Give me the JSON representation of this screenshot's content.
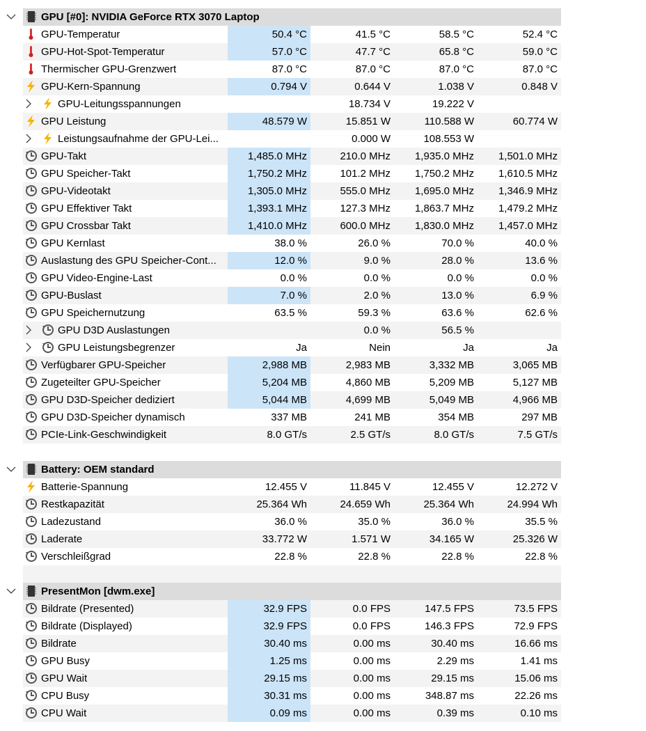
{
  "sections": [
    {
      "title": "GPU [#0]: NVIDIA GeForce RTX 3070 Laptop",
      "rows": [
        {
          "label": "GPU-Temperatur",
          "icon": "temp",
          "highlight": true,
          "values": [
            "50.4 °C",
            "41.5 °C",
            "58.5 °C",
            "52.4 °C"
          ]
        },
        {
          "label": "GPU-Hot-Spot-Temperatur",
          "icon": "temp",
          "highlight": true,
          "values": [
            "57.0 °C",
            "47.7 °C",
            "65.8 °C",
            "59.0 °C"
          ]
        },
        {
          "label": "Thermischer GPU-Grenzwert",
          "icon": "temp",
          "highlight": false,
          "values": [
            "87.0 °C",
            "87.0 °C",
            "87.0 °C",
            "87.0 °C"
          ]
        },
        {
          "label": "GPU-Kern-Spannung",
          "icon": "volt",
          "highlight": true,
          "values": [
            "0.794 V",
            "0.644 V",
            "1.038 V",
            "0.848 V"
          ]
        },
        {
          "label": "GPU-Leitungsspannungen",
          "icon": "volt",
          "child": true,
          "highlight": false,
          "values": [
            null,
            "18.734 V",
            "19.222 V",
            null
          ]
        },
        {
          "label": "GPU Leistung",
          "icon": "volt",
          "highlight": true,
          "values": [
            "48.579 W",
            "15.851 W",
            "110.588 W",
            "60.774 W"
          ]
        },
        {
          "label": "Leistungsaufnahme der GPU-Lei...",
          "icon": "volt",
          "child": true,
          "highlight": false,
          "values": [
            null,
            "0.000 W",
            "108.553 W",
            null
          ]
        },
        {
          "label": "GPU-Takt",
          "icon": "clock",
          "highlight": true,
          "values": [
            "1,485.0 MHz",
            "210.0 MHz",
            "1,935.0 MHz",
            "1,501.0 MHz"
          ]
        },
        {
          "label": "GPU Speicher-Takt",
          "icon": "clock",
          "highlight": true,
          "values": [
            "1,750.2 MHz",
            "101.2 MHz",
            "1,750.2 MHz",
            "1,610.5 MHz"
          ]
        },
        {
          "label": "GPU-Videotakt",
          "icon": "clock",
          "highlight": true,
          "values": [
            "1,305.0 MHz",
            "555.0 MHz",
            "1,695.0 MHz",
            "1,346.9 MHz"
          ]
        },
        {
          "label": "GPU Effektiver Takt",
          "icon": "clock",
          "highlight": true,
          "values": [
            "1,393.1 MHz",
            "127.3 MHz",
            "1,863.7 MHz",
            "1,479.2 MHz"
          ]
        },
        {
          "label": "GPU Crossbar Takt",
          "icon": "clock",
          "highlight": true,
          "values": [
            "1,410.0 MHz",
            "600.0 MHz",
            "1,830.0 MHz",
            "1,457.0 MHz"
          ]
        },
        {
          "label": "GPU Kernlast",
          "icon": "clock",
          "highlight": false,
          "values": [
            "38.0 %",
            "26.0 %",
            "70.0 %",
            "40.0 %"
          ]
        },
        {
          "label": "Auslastung des GPU Speicher-Cont...",
          "icon": "clock",
          "highlight": true,
          "values": [
            "12.0 %",
            "9.0 %",
            "28.0 %",
            "13.6 %"
          ]
        },
        {
          "label": "GPU Video-Engine-Last",
          "icon": "clock",
          "highlight": false,
          "values": [
            "0.0 %",
            "0.0 %",
            "0.0 %",
            "0.0 %"
          ]
        },
        {
          "label": "GPU-Buslast",
          "icon": "clock",
          "highlight": true,
          "values": [
            "7.0 %",
            "2.0 %",
            "13.0 %",
            "6.9 %"
          ]
        },
        {
          "label": "GPU Speichernutzung",
          "icon": "clock",
          "highlight": false,
          "values": [
            "63.5 %",
            "59.3 %",
            "63.6 %",
            "62.6 %"
          ]
        },
        {
          "label": "GPU D3D Auslastungen",
          "icon": "clock",
          "child": true,
          "highlight": false,
          "values": [
            null,
            "0.0 %",
            "56.5 %",
            null
          ]
        },
        {
          "label": "GPU Leistungsbegrenzer",
          "icon": "clock",
          "child": true,
          "highlight": false,
          "values": [
            "Ja",
            "Nein",
            "Ja",
            "Ja"
          ]
        },
        {
          "label": "Verfügbarer GPU-Speicher",
          "icon": "clock",
          "highlight": true,
          "values": [
            "2,988 MB",
            "2,983 MB",
            "3,332 MB",
            "3,065 MB"
          ]
        },
        {
          "label": "Zugeteilter GPU-Speicher",
          "icon": "clock",
          "highlight": true,
          "values": [
            "5,204 MB",
            "4,860 MB",
            "5,209 MB",
            "5,127 MB"
          ]
        },
        {
          "label": "GPU D3D-Speicher dediziert",
          "icon": "clock",
          "highlight": true,
          "values": [
            "5,044 MB",
            "4,699 MB",
            "5,049 MB",
            "4,966 MB"
          ]
        },
        {
          "label": "GPU D3D-Speicher dynamisch",
          "icon": "clock",
          "highlight": false,
          "values": [
            "337 MB",
            "241 MB",
            "354 MB",
            "297 MB"
          ]
        },
        {
          "label": "PCIe-Link-Geschwindigkeit",
          "icon": "clock",
          "highlight": false,
          "values": [
            "8.0 GT/s",
            "2.5 GT/s",
            "8.0 GT/s",
            "7.5 GT/s"
          ]
        }
      ]
    },
    {
      "title": "Battery: OEM standard",
      "rows": [
        {
          "label": "Batterie-Spannung",
          "icon": "volt",
          "highlight": false,
          "values": [
            "12.455 V",
            "11.845 V",
            "12.455 V",
            "12.272 V"
          ]
        },
        {
          "label": "Restkapazität",
          "icon": "clock",
          "highlight": false,
          "values": [
            "25.364 Wh",
            "24.659 Wh",
            "25.364 Wh",
            "24.994 Wh"
          ]
        },
        {
          "label": "Ladezustand",
          "icon": "clock",
          "highlight": false,
          "values": [
            "36.0 %",
            "35.0 %",
            "36.0 %",
            "35.5 %"
          ]
        },
        {
          "label": "Laderate",
          "icon": "clock",
          "highlight": false,
          "values": [
            "33.772 W",
            "1.571 W",
            "34.165 W",
            "25.326 W"
          ]
        },
        {
          "label": "Verschleißgrad",
          "icon": "clock",
          "highlight": false,
          "values": [
            "22.8 %",
            "22.8 %",
            "22.8 %",
            "22.8 %"
          ]
        }
      ]
    },
    {
      "title": "PresentMon [dwm.exe]",
      "rows": [
        {
          "label": "Bildrate (Presented)",
          "icon": "clock",
          "highlight": true,
          "values": [
            "32.9 FPS",
            "0.0 FPS",
            "147.5 FPS",
            "73.5 FPS"
          ]
        },
        {
          "label": "Bildrate (Displayed)",
          "icon": "clock",
          "highlight": true,
          "values": [
            "32.9 FPS",
            "0.0 FPS",
            "146.3 FPS",
            "72.9 FPS"
          ]
        },
        {
          "label": "Bildrate",
          "icon": "clock",
          "highlight": true,
          "values": [
            "30.40 ms",
            "0.00 ms",
            "30.40 ms",
            "16.66 ms"
          ]
        },
        {
          "label": "GPU Busy",
          "icon": "clock",
          "highlight": true,
          "values": [
            "1.25 ms",
            "0.00 ms",
            "2.29 ms",
            "1.41 ms"
          ]
        },
        {
          "label": "GPU Wait",
          "icon": "clock",
          "highlight": true,
          "values": [
            "29.15 ms",
            "0.00 ms",
            "29.15 ms",
            "15.06 ms"
          ]
        },
        {
          "label": "CPU Busy",
          "icon": "clock",
          "highlight": true,
          "values": [
            "30.31 ms",
            "0.00 ms",
            "348.87 ms",
            "22.26 ms"
          ]
        },
        {
          "label": "CPU Wait",
          "icon": "clock",
          "highlight": true,
          "values": [
            "0.09 ms",
            "0.00 ms",
            "0.39 ms",
            "0.10 ms"
          ]
        }
      ]
    }
  ]
}
